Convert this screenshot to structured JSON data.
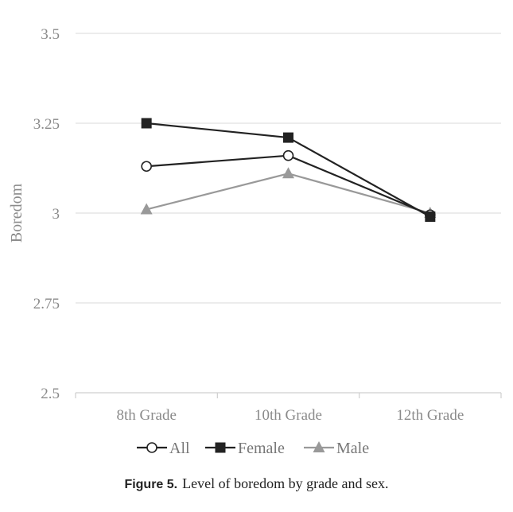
{
  "chart_data": {
    "type": "line",
    "categories": [
      "8th Grade",
      "10th Grade",
      "12th Grade"
    ],
    "series": [
      {
        "name": "All",
        "values": [
          3.13,
          3.16,
          2.995
        ],
        "color": "#222222",
        "marker": "circle-open"
      },
      {
        "name": "Female",
        "values": [
          3.25,
          3.21,
          2.99
        ],
        "color": "#222222",
        "marker": "square"
      },
      {
        "name": "Male",
        "values": [
          3.01,
          3.11,
          3.0
        ],
        "color": "#999999",
        "marker": "triangle"
      }
    ],
    "ylabel": "Boredom",
    "ylim": [
      2.5,
      3.5
    ],
    "yticks": [
      "2.5",
      "2.75",
      "3",
      "3.25",
      "3.5"
    ],
    "grid": true,
    "legend_position": "bottom"
  },
  "caption": {
    "label": "Figure 5.",
    "text": "Level of boredom by grade and sex."
  }
}
